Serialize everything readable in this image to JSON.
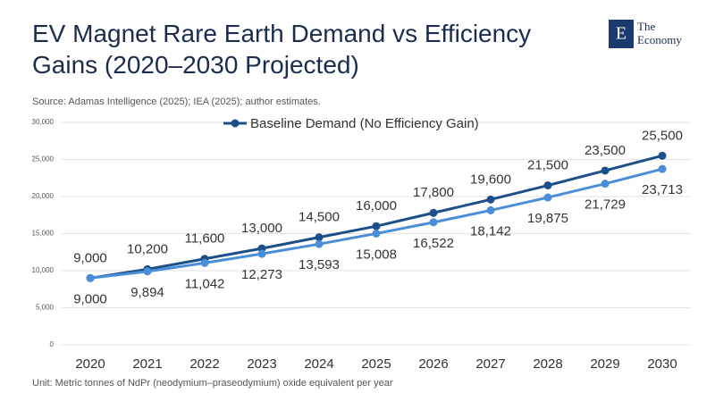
{
  "logo": {
    "mark": "E",
    "line1": "The",
    "line2": "Economy"
  },
  "chart_data": {
    "type": "line",
    "title": "EV Magnet Rare Earth Demand vs Efficiency Gains (2020–2030 Projected)",
    "subtitle": "Source: Adamas Intelligence (2025); IEA (2025); author estimates.",
    "note": "Unit: Metric tonnes of NdPr (neodymium–praseodymium) oxide equivalent per year",
    "categories": [
      "2020",
      "2021",
      "2022",
      "2023",
      "2024",
      "2025",
      "2026",
      "2027",
      "2028",
      "2029",
      "2030"
    ],
    "series": [
      {
        "name": "Baseline Demand (No Efficiency Gain)",
        "color": "#1d4f8a",
        "label_position": "above",
        "values": [
          9000,
          10200,
          11600,
          13000,
          14500,
          16000,
          17800,
          19600,
          21500,
          23500,
          25500
        ],
        "value_labels": [
          "9,000",
          "10,200",
          "11,600",
          "13,000",
          "14,500",
          "16,000",
          "17,800",
          "19,600",
          "21,500",
          "23,500",
          "25,500"
        ]
      },
      {
        "color": "#4a8ed8",
        "label_position": "below",
        "values": [
          9000,
          9894,
          11042,
          12273,
          13593,
          15008,
          16522,
          18142,
          19875,
          21729,
          23713
        ],
        "value_labels": [
          "9,000",
          "9,894",
          "11,042",
          "12,273",
          "13,593",
          "15,008",
          "16,522",
          "18,142",
          "19,875",
          "21,729",
          "23,713"
        ]
      }
    ],
    "ylim": [
      0,
      30000
    ],
    "yticks": [
      0,
      {
        "value": 5000,
        "label": "5,000"
      },
      {
        "value": 10000,
        "label": "10,000"
      },
      {
        "value": 15000,
        "label": "15,000"
      },
      {
        "value": 20000,
        "label": "20,000"
      },
      {
        "value": 25000,
        "label": "25,000"
      },
      {
        "value": 30000,
        "label": "30,000"
      }
    ],
    "grid": true,
    "legend": "top"
  }
}
